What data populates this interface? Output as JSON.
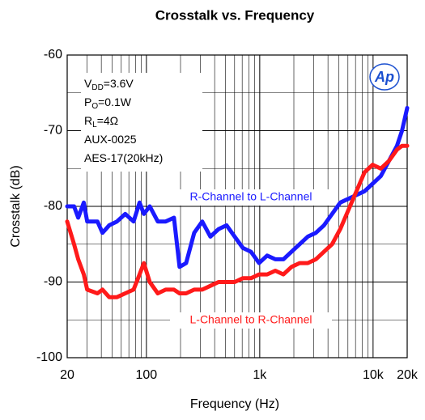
{
  "chart_data": {
    "type": "line",
    "title": "Crosstalk vs. Frequency",
    "xlabel": "Frequency (Hz)",
    "ylabel": "Crosstalk (dB)",
    "xscale": "log",
    "xlim": [
      20,
      20000
    ],
    "ylim": [
      -100,
      -60
    ],
    "xticks": [
      20,
      100,
      {
        "value": 1000,
        "label": "1k"
      },
      {
        "value": 10000,
        "label": "10k"
      },
      {
        "value": 20000,
        "label": "20k"
      }
    ],
    "yticks": [
      -60,
      -70,
      -80,
      -90,
      -100
    ],
    "x_minor_ticks": [
      30,
      40,
      50,
      60,
      70,
      80,
      90,
      200,
      300,
      400,
      500,
      600,
      700,
      800,
      900,
      2000,
      3000,
      4000,
      5000,
      6000,
      7000,
      8000,
      9000
    ],
    "y_minor_ticks": [
      -65,
      -75,
      -85,
      -95
    ],
    "grid": true,
    "x": [
      20,
      23,
      25,
      28,
      30,
      37,
      41,
      47,
      55,
      65,
      77,
      87,
      95,
      107,
      126,
      148,
      175,
      196,
      224,
      264,
      311,
      367,
      433,
      510,
      601,
      710,
      837,
      986,
      1163,
      1372,
      1617,
      1907,
      2249,
      2652,
      3128,
      3688,
      4349,
      5129,
      6048,
      7132,
      8410,
      9917,
      11695,
      13790,
      16262,
      18000,
      20000
    ],
    "series": [
      {
        "name": "R-Channel to L-Channel",
        "color": "#1a1aff",
        "values": [
          -80,
          -80,
          -81.5,
          -79.5,
          -82,
          -82,
          -83.5,
          -82.5,
          -82,
          -81,
          -82,
          -79.5,
          -81,
          -80,
          -82,
          -82,
          -81.5,
          -88,
          -87.5,
          -83.5,
          -82,
          -84,
          -83,
          -82.5,
          -84,
          -85.5,
          -86,
          -87.5,
          -86.5,
          -87,
          -87,
          -86,
          -85,
          -84,
          -83.5,
          -82.5,
          -81,
          -79.5,
          -79,
          -78.5,
          -78,
          -77,
          -76,
          -74,
          -72,
          -70,
          -67
        ]
      },
      {
        "name": "L-Channel to R-Channel",
        "color": "#ff1a1a",
        "values": [
          -82,
          -85,
          -87,
          -89,
          -91,
          -91.5,
          -91,
          -92,
          -92,
          -91.5,
          -91,
          -89,
          -87.5,
          -90,
          -91.5,
          -91,
          -91,
          -91.5,
          -91.5,
          -91,
          -91,
          -90.5,
          -90,
          -90,
          -90,
          -89.5,
          -89.5,
          -89,
          -89,
          -88.5,
          -89,
          -88,
          -87.5,
          -87.5,
          -87,
          -86,
          -85,
          -83,
          -80.5,
          -78,
          -75.5,
          -74.5,
          -75,
          -74,
          -72.5,
          -72,
          -72
        ]
      }
    ],
    "annotations": [
      {
        "base": "V",
        "sub": "DD",
        "rest": "=3.6V"
      },
      {
        "base": "P",
        "sub": "O",
        "rest": "=0.1W"
      },
      {
        "base": "R",
        "sub": "L",
        "rest": "=4Ω"
      },
      {
        "base": "AUX-0025"
      },
      {
        "base": "AES-17(20kHz)"
      }
    ],
    "logo": "Ap"
  }
}
